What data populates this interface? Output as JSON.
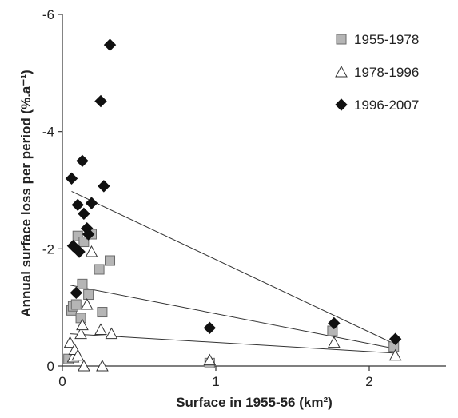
{
  "chart_data": {
    "type": "scatter",
    "title": "",
    "xlabel": "Surface in 1955-56 (km²)",
    "ylabel": "Annual surface loss per period (%.a⁻¹)",
    "xlim": [
      0,
      2.5
    ],
    "ylim": [
      0,
      -6
    ],
    "x_ticks": [
      0,
      1,
      2
    ],
    "y_ticks": [
      0,
      -2,
      -4,
      -6
    ],
    "x_tick_labels": [
      "0",
      "1",
      "2"
    ],
    "y_tick_labels": [
      "0",
      "-2",
      "-4",
      "-6"
    ],
    "grid": false,
    "legend_position": "top-right",
    "series": [
      {
        "name": "1955-1978",
        "marker": "square",
        "color": "#b5b5b5",
        "x": [
          0.04,
          0.06,
          0.07,
          0.09,
          0.1,
          0.12,
          0.13,
          0.14,
          0.17,
          0.19,
          0.24,
          0.26,
          0.31,
          0.96,
          1.76,
          2.16
        ],
        "y": [
          -0.12,
          -0.95,
          -1.02,
          -1.05,
          -2.22,
          -0.82,
          -1.4,
          -2.12,
          -1.22,
          -2.25,
          -1.65,
          -0.92,
          -1.8,
          -0.05,
          -0.6,
          -0.33
        ],
        "trend": {
          "x": [
            0.05,
            2.16
          ],
          "y": [
            -1.38,
            -0.3
          ]
        }
      },
      {
        "name": "1978-1996",
        "marker": "triangle",
        "color": "#ffffff",
        "x": [
          0.05,
          0.07,
          0.08,
          0.1,
          0.12,
          0.13,
          0.14,
          0.16,
          0.19,
          0.25,
          0.26,
          0.32,
          0.96,
          1.77,
          2.17
        ],
        "y": [
          -0.4,
          -0.15,
          -0.28,
          -0.18,
          -0.55,
          -0.7,
          0.0,
          -1.05,
          -1.95,
          -0.62,
          0.0,
          -0.55,
          -0.1,
          -0.4,
          -0.18
        ],
        "trend": {
          "x": [
            0.05,
            2.17
          ],
          "y": [
            -0.55,
            -0.22
          ]
        }
      },
      {
        "name": "1996-2007",
        "marker": "diamond",
        "color": "#111111",
        "x": [
          0.06,
          0.07,
          0.09,
          0.1,
          0.11,
          0.13,
          0.14,
          0.16,
          0.17,
          0.19,
          0.25,
          0.27,
          0.31,
          0.96,
          1.77,
          2.17
        ],
        "y": [
          -3.2,
          -2.05,
          -1.25,
          -2.75,
          -1.95,
          -3.5,
          -2.6,
          -2.35,
          -2.25,
          -2.78,
          -4.52,
          -3.07,
          -5.48,
          -0.65,
          -0.73,
          -0.46
        ],
        "trend": {
          "x": [
            0.06,
            2.17
          ],
          "y": [
            -2.98,
            -0.37
          ]
        }
      }
    ]
  }
}
